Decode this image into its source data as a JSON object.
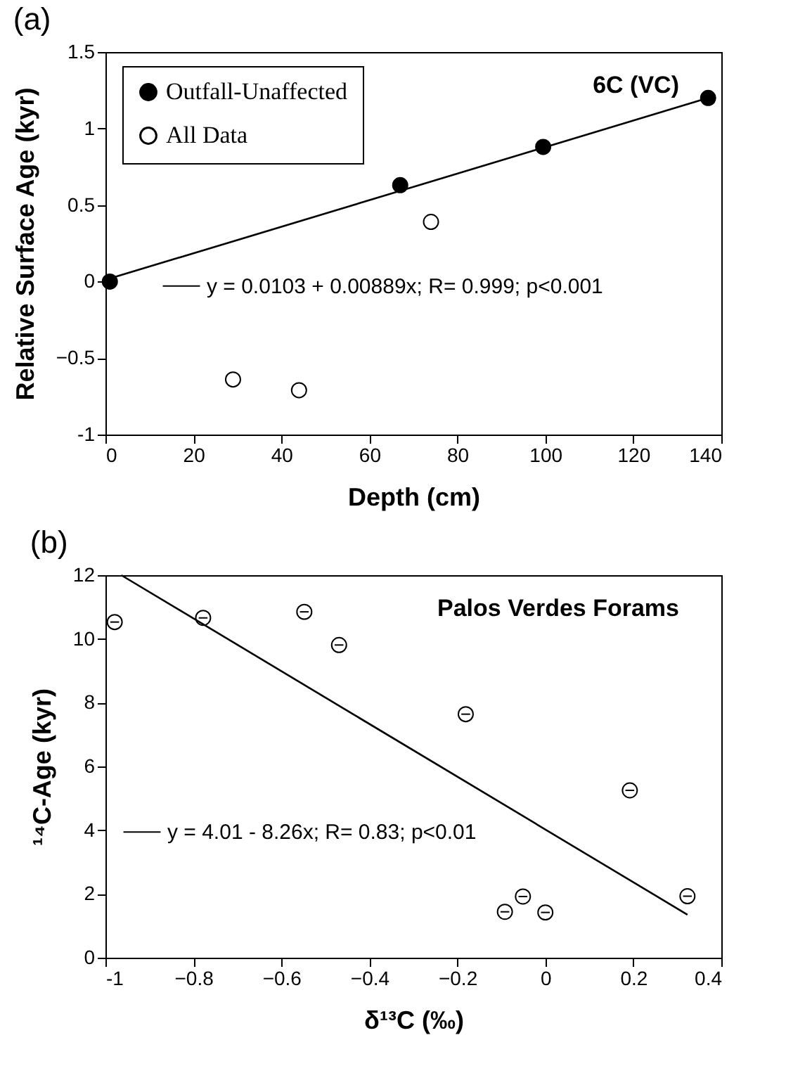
{
  "chart_data": [
    {
      "type": "scatter",
      "title": "(a)",
      "xlabel": "Depth  (cm)",
      "ylabel": "Relative  Surface  Age  (kyr)",
      "annotations": [
        "6C  (VC)"
      ],
      "xlim": [
        0,
        140
      ],
      "ylim": [
        -1,
        1.5
      ],
      "xticks": [
        0,
        20,
        40,
        60,
        80,
        100,
        120,
        140
      ],
      "yticks": [
        {
          "value": -1,
          "label": "-1"
        },
        -0.5,
        {
          "value": 0,
          "label": "0"
        },
        0.5,
        {
          "value": 1,
          "label": "1"
        },
        1.5
      ],
      "legend": "top left",
      "series": [
        {
          "name": "Outfall-Unaffected",
          "color": "#000000",
          "marker": "circle",
          "x": [
            1,
            67,
            99.5,
            137
          ],
          "values": [
            0,
            0.63,
            0.88,
            1.2
          ]
        },
        {
          "name": "All Data",
          "color": "#ffffff",
          "marker": "circle",
          "x": [
            29,
            44,
            74
          ],
          "values": [
            -0.64,
            -0.71,
            0.39
          ]
        },
        {
          "name": "y = 0.0103 + 0.00889x; R= 0.999; p<0.001",
          "type": "line",
          "color": "#000000",
          "marker": "none",
          "x": [
            1,
            137
          ],
          "values": [
            0.02,
            1.2
          ]
        }
      ]
    },
    {
      "type": "scatter",
      "title": "(b)",
      "xlabel": "δ¹³C  (‰)",
      "ylabel": "¹⁴C-Age  (kyr)",
      "annotations": [
        "Palos  Verdes  Forams"
      ],
      "xlim": [
        -1,
        0.4
      ],
      "ylim": [
        0,
        12
      ],
      "xticks": [
        {
          "value": -1,
          "label": "-1"
        },
        -0.8,
        -0.6,
        -0.4,
        -0.2,
        {
          "value": 0,
          "label": "0"
        },
        0.2,
        0.4
      ],
      "yticks": [
        0,
        2,
        4,
        6,
        8,
        10,
        12
      ],
      "legend": "left",
      "series": [
        {
          "color": "#ffffff",
          "marker": "circle",
          "x": [
            -0.979,
            -0.778,
            -0.548,
            -0.469,
            -0.181,
            0.192,
            0.323,
            -0.092,
            -0.051,
            0
          ],
          "values": [
            10.53,
            10.66,
            10.85,
            9.81,
            7.64,
            5.25,
            1.93,
            1.44,
            1.92,
            1.42
          ],
          "xerrors": [
            0.01,
            0.01,
            0.01,
            0.01,
            0.01,
            0.01,
            0.01,
            0.01,
            0.01,
            0.01
          ]
        },
        {
          "name": "y = 4.01 - 8.26x; R= 0.83; p<0.01",
          "type": "line",
          "color": "#000000",
          "marker": "none",
          "x": [
            -0.964,
            0.323
          ],
          "values": [
            12,
            1.35
          ]
        }
      ]
    }
  ]
}
